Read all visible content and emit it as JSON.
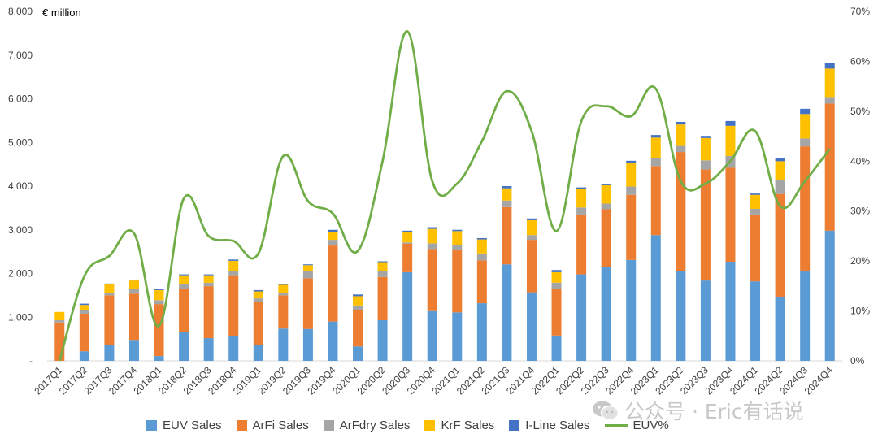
{
  "chart_data": {
    "type": "bar",
    "stacked": true,
    "left_axis_unit": "€ million",
    "ylim": [
      0,
      8000
    ],
    "y_ticks": [
      "-",
      "1,000",
      "2,000",
      "3,000",
      "4,000",
      "5,000",
      "6,000",
      "7,000",
      "8,000"
    ],
    "y2lim": [
      0,
      70
    ],
    "y2_ticks": [
      "0%",
      "10%",
      "20%",
      "30%",
      "40%",
      "50%",
      "60%",
      "70%"
    ],
    "grid": false,
    "legend_position": "bottom",
    "categories": [
      "2017Q1",
      "2017Q2",
      "2017Q3",
      "2017Q4",
      "2018Q1",
      "2018Q2",
      "2018Q3",
      "2018Q4",
      "2019Q1",
      "2019Q2",
      "2019Q3",
      "2019Q4",
      "2020Q1",
      "2020Q2",
      "2020Q3",
      "2020Q4",
      "2021Q1",
      "2021Q2",
      "2021Q3",
      "2021Q4",
      "2022Q1",
      "2022Q2",
      "2022Q3",
      "2022Q4",
      "2023Q1",
      "2023Q2",
      "2023Q3",
      "2023Q4",
      "2024Q1",
      "2024Q2",
      "2024Q3",
      "2024Q4"
    ],
    "series": [
      {
        "name": "EUV Sales",
        "color": "#5b9bd5",
        "values": [
          0,
          220,
          370,
          480,
          110,
          660,
          520,
          560,
          360,
          740,
          730,
          900,
          330,
          930,
          2030,
          1140,
          1110,
          1320,
          2210,
          1570,
          580,
          1980,
          2150,
          2310,
          2880,
          2060,
          1840,
          2270,
          1820,
          1470,
          2060,
          2980
        ]
      },
      {
        "name": "ArFi Sales",
        "color": "#ed7d31",
        "values": [
          880,
          860,
          1130,
          1060,
          1190,
          990,
          1190,
          1400,
          980,
          760,
          1160,
          1740,
          840,
          990,
          650,
          1420,
          1440,
          980,
          1310,
          1200,
          1060,
          1370,
          1320,
          1490,
          1580,
          2720,
          2540,
          2150,
          1530,
          2350,
          2850,
          2910
        ]
      },
      {
        "name": "ArFdry Sales",
        "color": "#a5a5a5",
        "values": [
          50,
          90,
          60,
          110,
          90,
          110,
          80,
          100,
          90,
          60,
          170,
          130,
          100,
          140,
          30,
          130,
          100,
          160,
          150,
          110,
          150,
          160,
          130,
          190,
          190,
          140,
          210,
          270,
          130,
          330,
          180,
          150
        ]
      },
      {
        "name": "KrF Sales",
        "color": "#ffc000",
        "values": [
          190,
          110,
          190,
          190,
          230,
          200,
          170,
          230,
          160,
          180,
          130,
          170,
          210,
          200,
          240,
          330,
          320,
          320,
          280,
          340,
          240,
          420,
          420,
          550,
          460,
          490,
          510,
          690,
          320,
          420,
          560,
          650
        ]
      },
      {
        "name": "I-Line Sales",
        "color": "#4472c4",
        "values": [
          0,
          30,
          20,
          20,
          30,
          20,
          20,
          30,
          30,
          20,
          20,
          60,
          40,
          20,
          30,
          40,
          30,
          30,
          50,
          40,
          50,
          40,
          30,
          40,
          60,
          60,
          50,
          110,
          30,
          80,
          120,
          130
        ]
      },
      {
        "name": "EUV%",
        "type": "line",
        "axis": "right",
        "color": "#70ad47",
        "values": [
          0,
          17,
          21,
          25.5,
          7,
          32.5,
          25,
          24,
          21.5,
          41,
          32,
          29.5,
          22,
          40,
          66,
          36,
          35.5,
          44,
          54,
          46,
          26,
          48,
          51,
          49,
          54.5,
          36,
          35.5,
          40,
          46,
          31,
          36,
          42.5
        ]
      }
    ]
  },
  "legend": {
    "items": [
      {
        "label": "EUV Sales",
        "color": "#5b9bd5",
        "kind": "box"
      },
      {
        "label": "ArFi Sales",
        "color": "#ed7d31",
        "kind": "box"
      },
      {
        "label": "ArFdry Sales",
        "color": "#a5a5a5",
        "kind": "box"
      },
      {
        "label": "KrF Sales",
        "color": "#ffc000",
        "kind": "box"
      },
      {
        "label": "I-Line Sales",
        "color": "#4472c4",
        "kind": "box"
      },
      {
        "label": "EUV%",
        "color": "#70ad47",
        "kind": "line"
      }
    ]
  },
  "watermark": {
    "text": "公众号 · Eric有话说",
    "icon": "wechat-icon"
  }
}
